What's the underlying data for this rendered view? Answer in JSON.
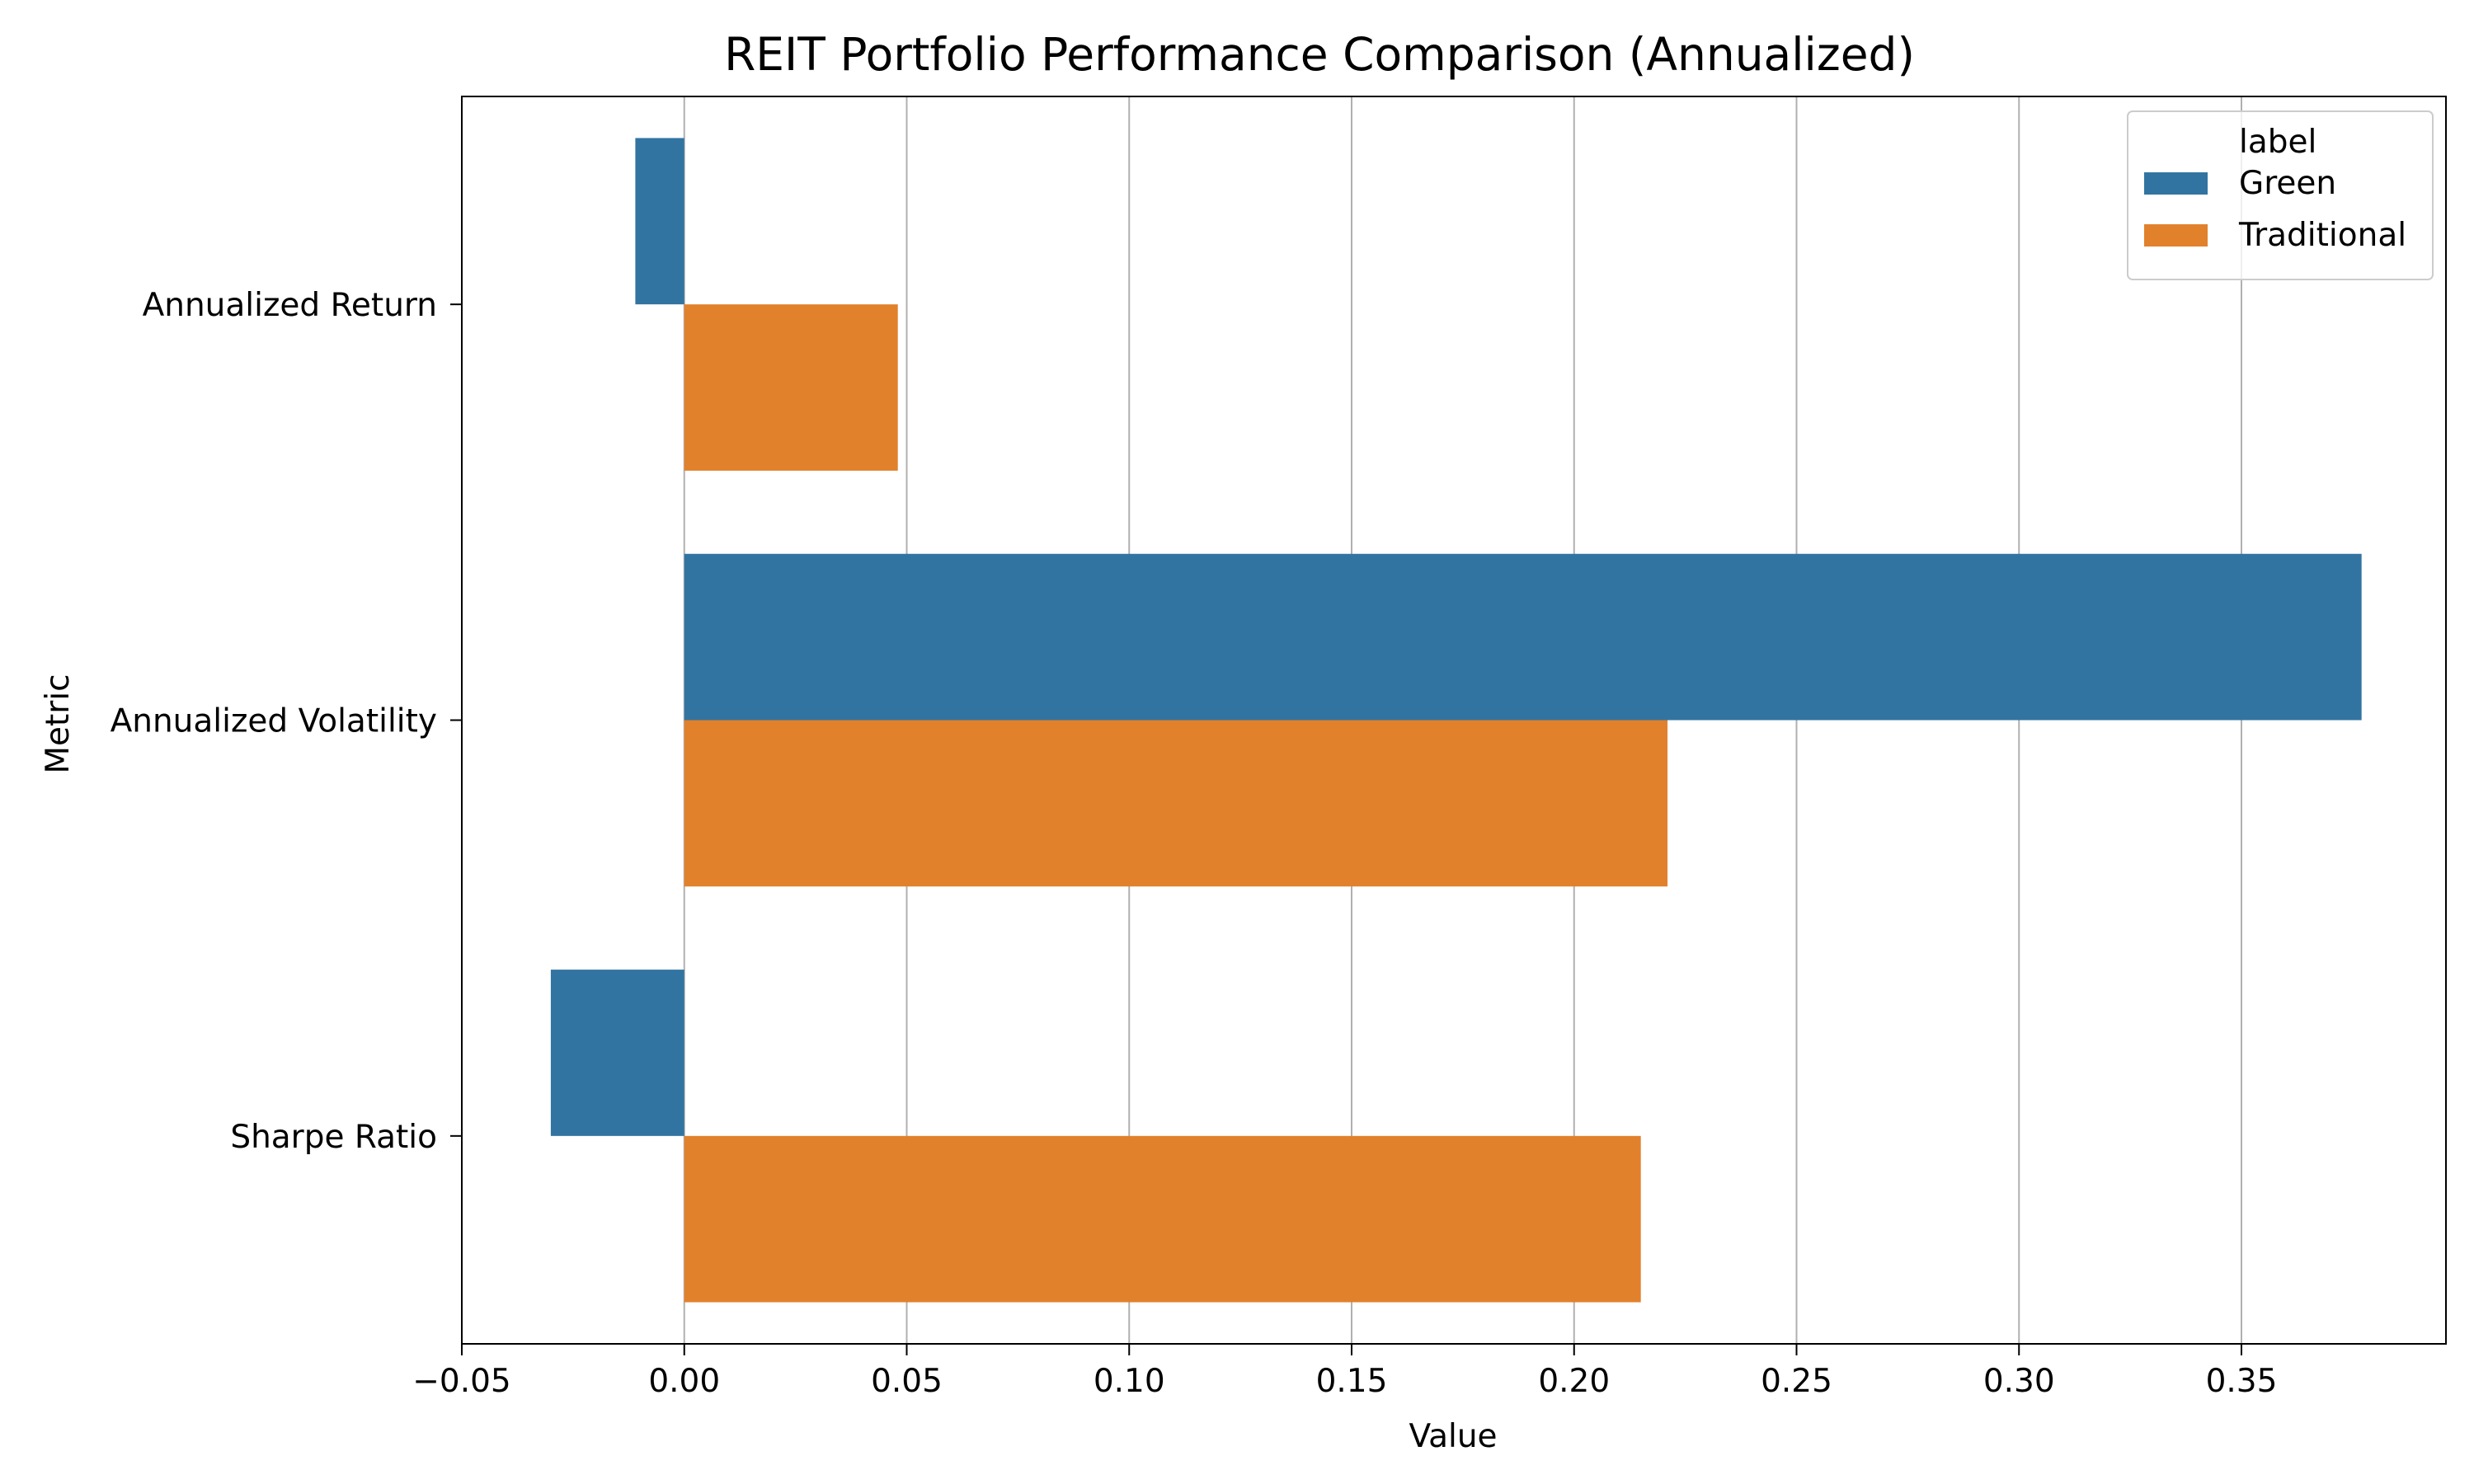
{
  "chart_data": {
    "type": "bar",
    "orientation": "horizontal",
    "title": "REIT Portfolio Performance Comparison (Annualized)",
    "xlabel": "Value",
    "ylabel": "Metric",
    "categories": [
      "Annualized Return",
      "Annualized Volatility",
      "Sharpe Ratio"
    ],
    "series": [
      {
        "name": "Green",
        "color": "#3274a1",
        "values": [
          -0.011,
          0.377,
          -0.03
        ]
      },
      {
        "name": "Traditional",
        "color": "#e1812c",
        "values": [
          0.048,
          0.221,
          0.215
        ]
      }
    ],
    "xlim": [
      -0.05,
      0.4
    ],
    "xticks": [
      -0.05,
      0.0,
      0.05,
      0.1,
      0.15,
      0.2,
      0.25,
      0.3,
      0.35
    ],
    "xtick_labels": [
      "−0.05",
      "0.00",
      "0.05",
      "0.10",
      "0.15",
      "0.20",
      "0.25",
      "0.30",
      "0.35"
    ],
    "grid": "x-axis vertical lines",
    "legend": {
      "title": "label",
      "position": "top-right"
    }
  }
}
